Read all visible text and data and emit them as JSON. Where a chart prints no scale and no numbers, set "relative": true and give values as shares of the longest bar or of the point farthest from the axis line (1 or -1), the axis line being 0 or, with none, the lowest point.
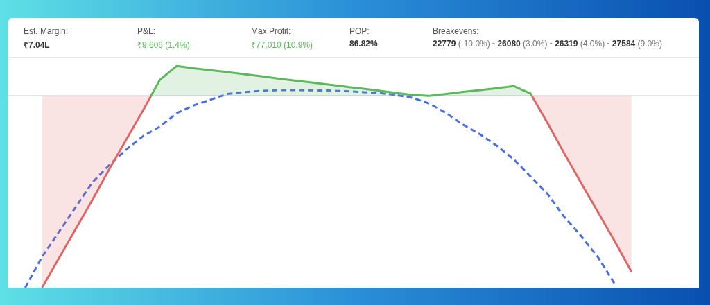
{
  "chart_data": [
    {
      "type": "other",
      "annotations": [
        "Est. Margin:",
        "₹7.04L",
        "P&L:",
        "₹9,606 (1.4%)",
        "Max Profit:",
        "₹77,010 (10.9%)",
        "POP:",
        "86.82%",
        "Breakevens:",
        "22779",
        "(-10.0%)",
        "- 26080",
        "(3.0%)",
        "- 26319",
        "(4.0%)",
        "- 27584",
        "(9.0%)"
      ]
    },
    {
      "type": "line",
      "relative": true,
      "legend": false,
      "categories": [
        null,
        null,
        null,
        null,
        null,
        null,
        null,
        null,
        null,
        null,
        null,
        null,
        null,
        null,
        null,
        null,
        null,
        null,
        null,
        null,
        null,
        null,
        null,
        null,
        null,
        null,
        null,
        null,
        null,
        null,
        null,
        null,
        null,
        null,
        null,
        null,
        null,
        null,
        null,
        null,
        null,
        null
      ],
      "series": [
        {
          "type": "area",
          "color": "#5cb85c",
          "values": [
            null,
            null,
            -1,
            -0.847,
            -0.694,
            -0.541,
            -0.381,
            -0.228,
            -0.076,
            0.084,
            0.156,
            0.144,
            0.134,
            0.124,
            0.113,
            0.102,
            0.091,
            0.08,
            0.07,
            0.059,
            0.048,
            0.038,
            0.027,
            0.016,
            0.005,
            0.0,
            0.01,
            0.021,
            0.03,
            0.04,
            0.051,
            0.013,
            -0.14,
            -0.299,
            -0.453,
            -0.605,
            -0.758,
            -0.918,
            null,
            null,
            null,
            null
          ],
          "colors": [
            null,
            null,
            "#e06666",
            "#e06666",
            "#e06666",
            "#e06666",
            "#e06666",
            "#e06666",
            "#e06666",
            "#5cb85c",
            "#5cb85c",
            "#5cb85c",
            "#5cb85c",
            "#5cb85c",
            "#5cb85c",
            "#5cb85c",
            "#5cb85c",
            "#5cb85c",
            "#5cb85c",
            "#5cb85c",
            "#5cb85c",
            "#5cb85c",
            "#5cb85c",
            "#5cb85c",
            "#5cb85c",
            "#5cb85c",
            "#5cb85c",
            "#5cb85c",
            "#5cb85c",
            "#5cb85c",
            "#5cb85c",
            "#5cb85c",
            "#e06666",
            "#e06666",
            "#e06666",
            "#e06666",
            "#e06666",
            "#e06666",
            null,
            null,
            null,
            null
          ]
        },
        {
          "type": "line",
          "color": "#4a6fe3",
          "line_style": "dashed",
          "values": [
            null,
            -1,
            -0.84,
            -0.71,
            -0.58,
            -0.45,
            -0.36,
            -0.28,
            -0.21,
            -0.16,
            -0.09,
            -0.05,
            -0.02,
            0.01,
            0.02,
            0.026,
            0.03,
            0.03,
            0.029,
            0.028,
            0.025,
            0.02,
            0.015,
            0.005,
            -0.01,
            -0.04,
            -0.09,
            -0.15,
            -0.2,
            -0.26,
            -0.33,
            -0.42,
            -0.51,
            -0.63,
            -0.73,
            -0.84,
            -0.98,
            null,
            null,
            null,
            null,
            null
          ]
        }
      ]
    }
  ]
}
